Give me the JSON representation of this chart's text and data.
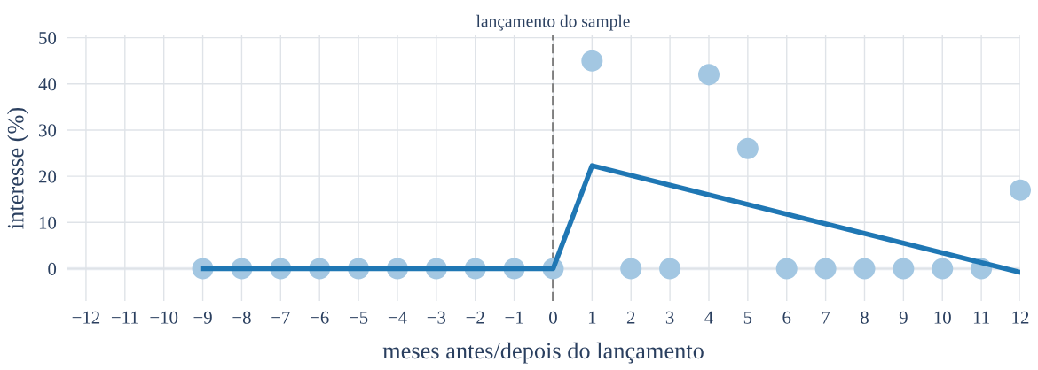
{
  "chart_data": {
    "type": "scatter",
    "xlabel": "meses antes/depois do lançamento",
    "ylabel": "interesse (%)",
    "x": [
      -9,
      -8,
      -7,
      -6,
      -5,
      -4,
      -3,
      -2,
      -1,
      0,
      1,
      2,
      3,
      4,
      5,
      6,
      7,
      8,
      9,
      10,
      11,
      12
    ],
    "series": [
      {
        "color": "#a3c7e2",
        "marker": "circle",
        "values": [
          0,
          0,
          0,
          0,
          0,
          0,
          0,
          0,
          0,
          0,
          45,
          0,
          0,
          42,
          26,
          0,
          0,
          0,
          0,
          0,
          0,
          17
        ]
      },
      {
        "type": "line",
        "color": "#1f77b4",
        "x": [
          -9,
          0,
          1,
          12
        ],
        "values": [
          0,
          0,
          22.3,
          -0.8
        ]
      }
    ],
    "xlim": [
      -12.5,
      12
    ],
    "xticks": [
      {
        "value": -12,
        "label": "−12"
      },
      {
        "value": -11,
        "label": "−11"
      },
      {
        "value": -10,
        "label": "−10"
      },
      {
        "value": -9,
        "label": "−9"
      },
      {
        "value": -8,
        "label": "−8"
      },
      {
        "value": -7,
        "label": "−7"
      },
      {
        "value": -6,
        "label": "−6"
      },
      {
        "value": -5,
        "label": "−5"
      },
      {
        "value": -4,
        "label": "−4"
      },
      {
        "value": -3,
        "label": "−3"
      },
      {
        "value": -2,
        "label": "−2"
      },
      {
        "value": -1,
        "label": "−1"
      },
      0,
      1,
      2,
      3,
      4,
      5,
      6,
      7,
      8,
      9,
      10,
      11,
      12
    ],
    "ylim": [
      -7,
      50.5
    ],
    "yticks": [
      0,
      10,
      20,
      30,
      40,
      50
    ],
    "ref_lines": [
      {
        "axis": "x",
        "value": 0,
        "label": "lançamento do sample",
        "color": "#7f7f7f",
        "line_style": "dashed"
      }
    ],
    "grid": true,
    "legend": false
  }
}
